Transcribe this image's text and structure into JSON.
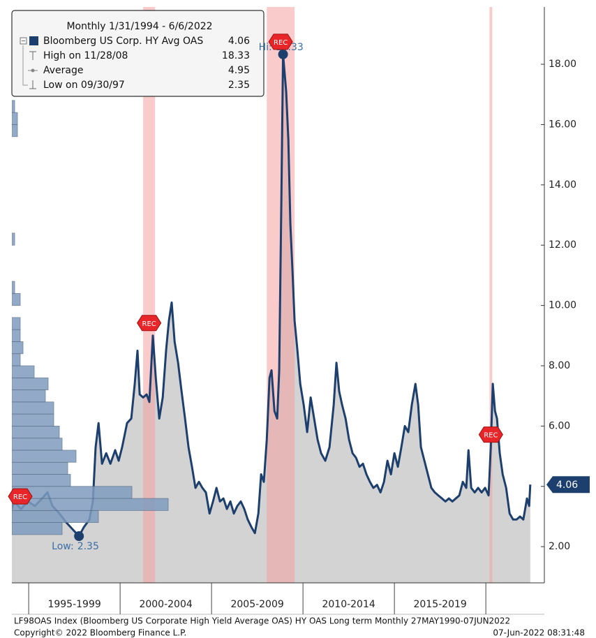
{
  "chart_data": {
    "type": "line",
    "legend_title": "Monthly 1/31/1994 - 6/6/2022",
    "x": [
      1994.08,
      1994.2,
      1994.58,
      1994.96,
      1995.34,
      1995.73,
      1996.03,
      1996.3,
      1996.68,
      1997.06,
      1997.44,
      1997.75,
      1998.02,
      1998.32,
      1998.51,
      1998.66,
      1998.82,
      1999.01,
      1999.24,
      1999.47,
      1999.73,
      1999.92,
      2000.11,
      2000.38,
      2000.61,
      2000.8,
      2000.95,
      2001.07,
      2001.26,
      2001.45,
      2001.6,
      2001.79,
      2001.95,
      2002.14,
      2002.33,
      2002.52,
      2002.67,
      2002.82,
      2002.98,
      2003.17,
      2003.36,
      2003.55,
      2003.74,
      2003.93,
      2004.12,
      2004.31,
      2004.5,
      2004.69,
      2004.89,
      2005.08,
      2005.27,
      2005.46,
      2005.65,
      2005.84,
      2006.03,
      2006.22,
      2006.41,
      2006.6,
      2006.79,
      2006.98,
      2007.18,
      2007.37,
      2007.56,
      2007.71,
      2007.86,
      2008.02,
      2008.17,
      2008.28,
      2008.44,
      2008.59,
      2008.7,
      2008.82,
      2008.91,
      2009.08,
      2009.2,
      2009.31,
      2009.43,
      2009.54,
      2009.69,
      2009.85,
      2010.04,
      2010.23,
      2010.42,
      2010.61,
      2010.8,
      2010.99,
      2011.22,
      2011.45,
      2011.68,
      2011.83,
      2011.98,
      2012.14,
      2012.33,
      2012.52,
      2012.71,
      2012.9,
      2013.09,
      2013.28,
      2013.47,
      2013.66,
      2013.85,
      2014.05,
      2014.24,
      2014.43,
      2014.62,
      2014.81,
      2015.0,
      2015.19,
      2015.38,
      2015.57,
      2015.76,
      2015.95,
      2016.15,
      2016.3,
      2016.45,
      2016.64,
      2016.83,
      2017.02,
      2017.21,
      2017.4,
      2017.6,
      2017.79,
      2017.98,
      2018.17,
      2018.36,
      2018.55,
      2018.74,
      2018.93,
      2019.05,
      2019.2,
      2019.39,
      2019.58,
      2019.77,
      2019.96,
      2020.15,
      2020.27,
      2020.38,
      2020.5,
      2020.61,
      2020.76,
      2020.92,
      2021.11,
      2021.3,
      2021.49,
      2021.68,
      2021.87,
      2022.05,
      2022.25,
      2022.37,
      2022.43
    ],
    "series": [
      {
        "name": "Bloomberg US Corp. HY Avg OAS",
        "color": "#1c3f6e",
        "axis": "y2",
        "values": [
          3.25,
          3.5,
          3.25,
          3.5,
          3.35,
          3.6,
          3.8,
          3.35,
          3.1,
          2.8,
          2.55,
          2.35,
          2.65,
          2.9,
          3.5,
          5.3,
          6.1,
          4.75,
          5.1,
          4.75,
          5.2,
          4.85,
          5.3,
          6.1,
          6.25,
          7.4,
          8.5,
          7.05,
          6.95,
          7.05,
          6.8,
          9.0,
          7.6,
          6.25,
          6.95,
          8.55,
          9.5,
          10.1,
          8.8,
          8.1,
          7.15,
          6.25,
          5.3,
          4.65,
          3.95,
          4.15,
          3.95,
          3.8,
          3.1,
          3.5,
          3.95,
          3.5,
          3.6,
          3.25,
          3.5,
          3.1,
          3.35,
          3.5,
          3.25,
          2.9,
          2.65,
          2.45,
          3.1,
          4.4,
          4.15,
          5.55,
          7.6,
          7.85,
          6.5,
          6.25,
          7.85,
          13.6,
          18.33,
          17.1,
          15.5,
          12.7,
          11.1,
          9.5,
          8.55,
          7.4,
          6.7,
          5.8,
          6.95,
          6.25,
          5.55,
          5.1,
          4.85,
          5.3,
          6.7,
          8.1,
          7.15,
          6.7,
          6.25,
          5.55,
          5.1,
          4.95,
          4.65,
          4.75,
          4.4,
          4.15,
          3.95,
          4.05,
          3.8,
          4.15,
          4.85,
          4.4,
          5.1,
          4.65,
          5.3,
          6.0,
          5.8,
          6.7,
          7.4,
          6.7,
          5.3,
          4.85,
          4.4,
          3.95,
          3.8,
          3.7,
          3.6,
          3.5,
          3.6,
          3.5,
          3.6,
          3.7,
          4.15,
          3.95,
          5.2,
          3.95,
          3.8,
          3.95,
          3.8,
          3.95,
          3.7,
          5.3,
          7.4,
          6.5,
          6.25,
          5.1,
          4.4,
          3.95,
          3.1,
          2.9,
          2.9,
          3.0,
          2.9,
          3.6,
          3.35,
          4.06
        ]
      }
    ],
    "stats": [
      {
        "label": "High on 11/28/08",
        "value": 18.33
      },
      {
        "label": "Average",
        "value": 4.95
      },
      {
        "label": "Low on 09/30/97",
        "value": 2.35
      }
    ],
    "annotations": {
      "high": "Hi:",
      "low": "Low:"
    },
    "xlim": [
      1994.08,
      2023.2
    ],
    "xticks": [
      1995,
      2000,
      2005,
      2010,
      2015,
      2020
    ],
    "x_period_labels": [
      "1995-1999",
      "2000-2004",
      "2005-2009",
      "2010-2014",
      "2015-2019"
    ],
    "y2lim": [
      0.8,
      19.9
    ],
    "y2ticks": [
      {
        "value": 2,
        "label": "2.00"
      },
      {
        "value": 4,
        "label": "4.00"
      },
      {
        "value": 6,
        "label": "6.00"
      },
      {
        "value": 8,
        "label": "8.00"
      },
      {
        "value": 10,
        "label": "10.00"
      },
      {
        "value": 12,
        "label": "12.00"
      },
      {
        "value": 14,
        "label": "14.00"
      },
      {
        "value": 16,
        "label": "16.00"
      },
      {
        "value": 18,
        "label": "18.00"
      }
    ],
    "area_color": "#d3d3d3",
    "recession_label": "REC",
    "recession_color": "#f5a0a0",
    "recessions": [
      {
        "from": 1990.55,
        "to": 1991.2
      },
      {
        "from": 2001.26,
        "to": 2001.91
      },
      {
        "from": 2008.02,
        "to": 2009.54
      },
      {
        "from": 2020.2,
        "to": 2020.35
      }
    ],
    "histogram": {
      "color": "#7f9cbf",
      "bins": [
        2.4,
        2.8,
        3.2,
        3.6,
        4,
        4.4,
        4.8,
        5.2,
        5.6,
        6,
        6.4,
        6.8,
        7.2,
        7.6,
        8,
        8.4,
        8.8,
        9.2,
        9.6,
        10,
        10.4,
        10.8,
        11.2,
        11.6,
        12,
        12.4,
        12.8,
        13.2,
        13.6,
        14,
        14.4,
        14.8,
        15.2,
        15.6,
        16,
        16.4,
        16.8,
        17.2,
        17.6,
        18,
        18.4
      ],
      "counts": [
        18,
        31,
        56,
        43,
        21,
        20,
        23,
        18,
        17,
        15,
        15,
        12,
        13,
        8,
        3,
        4,
        3,
        3,
        0,
        3,
        1,
        0,
        0,
        0,
        1,
        0,
        0,
        0,
        0,
        0,
        0,
        0,
        0,
        2,
        2,
        1,
        0,
        0,
        0,
        1
      ]
    },
    "footer": {
      "source": "LF98OAS Index (Bloomberg US Corporate High Yield Average OAS) HY OAS Long term  Monthly 27MAY1990-07JUN2022",
      "copyright": "Copyright© 2022 Bloomberg Finance L.P.",
      "timestamp": "07-Jun-2022 08:31:48"
    }
  }
}
